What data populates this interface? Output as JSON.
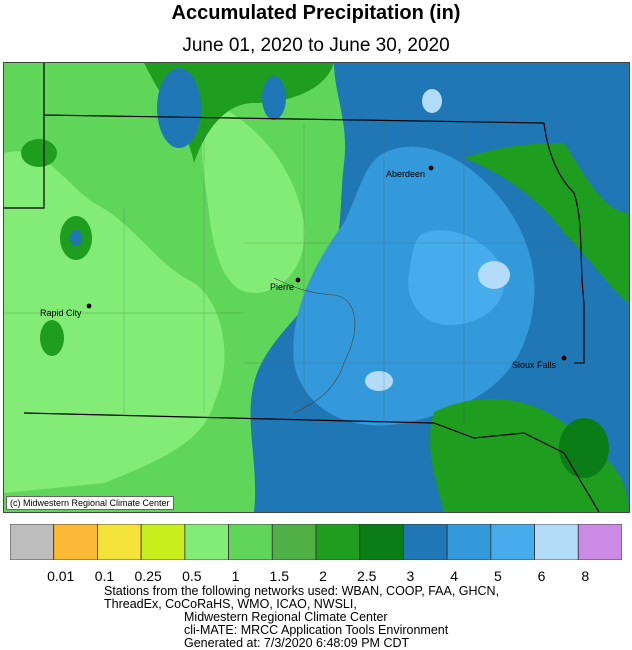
{
  "title": "Accumulated Precipitation (in)",
  "subtitle": "June 01, 2020 to June 30, 2020",
  "credit": "(c) Midwestern Regional Climate Center",
  "cities": [
    {
      "name": "Aberdeen"
    },
    {
      "name": "Pierre"
    },
    {
      "name": "Rapid City"
    },
    {
      "name": "Sioux Falls"
    }
  ],
  "legend": {
    "colors": [
      "#bdbdbd",
      "#fcb935",
      "#f2e23a",
      "#c8ee1d",
      "#82ec76",
      "#5fd65a",
      "#4fb048",
      "#1f9d1f",
      "#0b7d16",
      "#1f78b5",
      "#3399db",
      "#46acec",
      "#b3dcf8",
      "#cc8ae6"
    ],
    "labels": [
      "0.01",
      "0.1",
      "0.25",
      "0.5",
      "1",
      "1.5",
      "2",
      "2.5",
      "3",
      "4",
      "5",
      "6",
      "8"
    ]
  },
  "footer": {
    "line1": "Stations from the following networks used: WBAN, COOP, FAA, GHCN,",
    "line2": "ThreadEx, CoCoRaHS, WMO, ICAO, NWSLI,",
    "line3": "Midwestern Regional Climate Center",
    "line4": "cli-MATE: MRCC Application Tools Environment",
    "line5": "Generated at: 7/3/2020 6:48:09 PM CDT"
  }
}
